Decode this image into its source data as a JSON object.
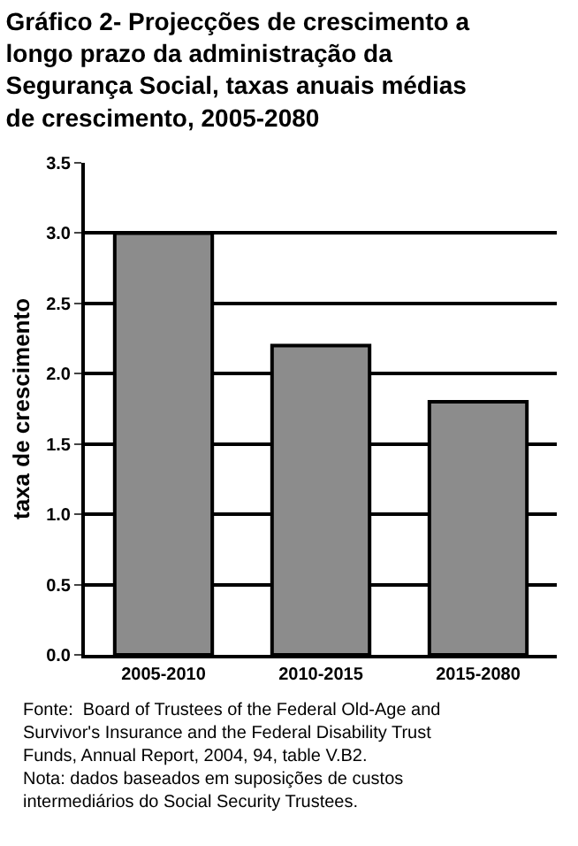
{
  "chart_data": {
    "type": "bar",
    "title": "Gráfico 2- Projecções de crescimento a longo prazo da administração da Segurança Social, taxas anuais médias de crescimento, 2005-2080",
    "ylabel": "taxa de crescimento",
    "categories": [
      "2005-2010",
      "2010-2015",
      "2015-2080"
    ],
    "series": [
      {
        "color": "#8c8c8c",
        "values": [
          3.0,
          2.2,
          1.8
        ]
      }
    ],
    "ylim": [
      0,
      3.5
    ],
    "yticks": [
      {
        "value": 0,
        "label": "0.0"
      },
      {
        "value": 0.5,
        "label": "0.5"
      },
      {
        "value": 1,
        "label": "1.0"
      },
      {
        "value": 1.5,
        "label": "1.5"
      },
      {
        "value": 2,
        "label": "2.0"
      },
      {
        "value": 2.5,
        "label": "2.5"
      },
      {
        "value": 3,
        "label": "3.0"
      },
      {
        "value": 3.5,
        "label": "3.5"
      }
    ],
    "grid": "y",
    "annotations": [
      "Fonte:  Board of Trustees of the Federal Old-Age and Survivor's Insurance and the Federal Disability Trust Funds, Annual Report, 2004, 94, table V.B2.",
      "Nota: dados baseados em suposições de custos intermediários do Social Security Trustees."
    ]
  }
}
